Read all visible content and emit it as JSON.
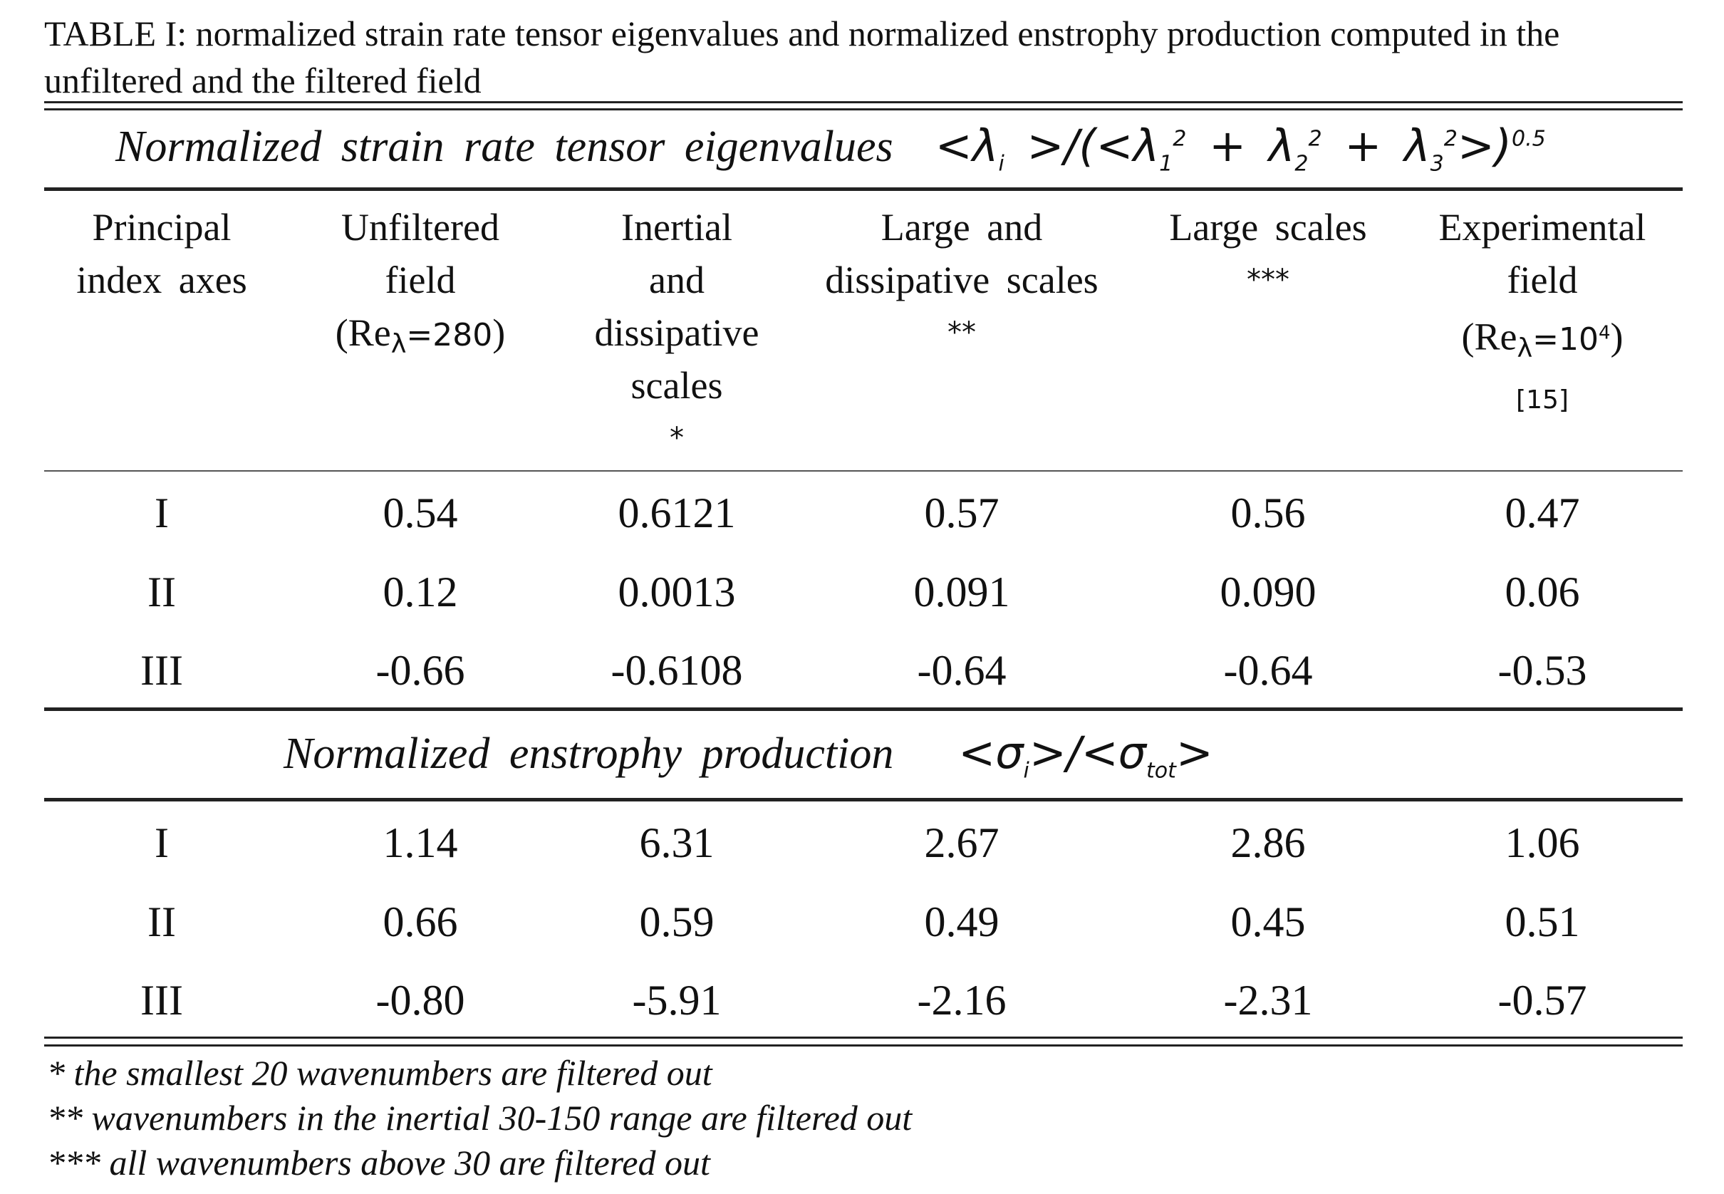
{
  "caption": "TABLE I: normalized strain rate tensor eigenvalues  and normalized enstrophy production computed in the unfiltered and the filtered field",
  "section1": {
    "title_text": "Normalized strain rate tensor eigenvalues",
    "formula": "<λ_i>/(<λ_1^2 + λ_2^2 + λ_3^2>)^0.5"
  },
  "headers": [
    [
      "Principal",
      "index axes"
    ],
    [
      "Unfiltered",
      "field",
      "(Reλ=280)"
    ],
    [
      "Inertial",
      "and",
      "dissipative",
      "scales",
      "*"
    ],
    [
      "Large and",
      "dissipative scales",
      "**"
    ],
    [
      "Large scales",
      "***"
    ],
    [
      "Experimental",
      "field",
      "(Reλ=10^4)",
      "[15]"
    ]
  ],
  "eigen_rows": [
    [
      "I",
      "0.54",
      "0.6121",
      "0.57",
      "0.56",
      "0.47"
    ],
    [
      "II",
      "0.12",
      "0.0013",
      "0.091",
      "0.090",
      "0.06"
    ],
    [
      "III",
      "-0.66",
      "-0.6108",
      "-0.64",
      "-0.64",
      "-0.53"
    ]
  ],
  "section2": {
    "title_text": "Normalized enstrophy production",
    "formula": "<σ_i>/<σ_tot>"
  },
  "enstrophy_rows": [
    [
      "I",
      "1.14",
      "6.31",
      "2.67",
      "2.86",
      "1.06"
    ],
    [
      "II",
      "0.66",
      "0.59",
      "0.49",
      "0.45",
      "0.51"
    ],
    [
      "III",
      "-0.80",
      "-5.91",
      "-2.16",
      "-2.31",
      "-0.57"
    ]
  ],
  "footnotes": [
    "* the smallest 20 wavenumbers are filtered out",
    "** wavenumbers in the inertial 30-150 range are filtered out",
    "*** all wavenumbers above 30 are filtered out"
  ]
}
